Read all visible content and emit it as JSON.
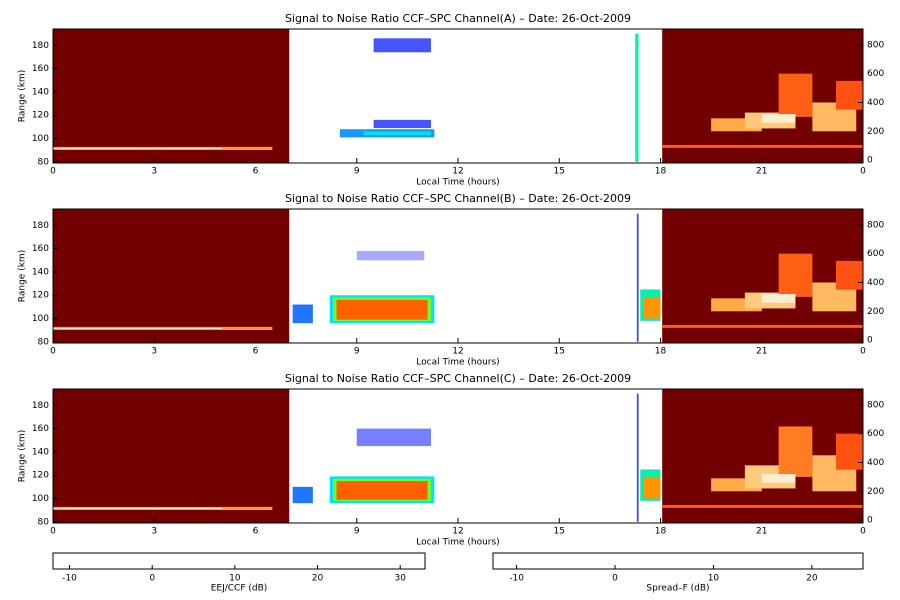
{
  "chart_data": [
    {
      "type": "heatmap",
      "title": "Signal to Noise Ratio CCF–SPC Channel(A) – Date: 26-Oct-2009",
      "xlabel": "Local Time (hours)",
      "ylabel": "Range (km)",
      "xlim": [
        0,
        24
      ],
      "xticks": [
        0,
        3,
        6,
        9,
        12,
        15,
        18,
        21,
        {
          "value": 24,
          "label": "0"
        }
      ],
      "ylim": [
        79,
        194
      ],
      "yticks": [
        80,
        100,
        120,
        140,
        160,
        180
      ],
      "y2lim": [
        -20,
        910
      ],
      "y2ticks": [
        0,
        200,
        400,
        600,
        800
      ],
      "cells": [
        {
          "x0": 9.5,
          "x1": 11.2,
          "y0": 174,
          "y1": 186,
          "value": -4
        },
        {
          "x0": 9.5,
          "x1": 11.2,
          "y0": 109,
          "y1": 116,
          "value": -4
        },
        {
          "x0": 8.5,
          "x1": 11.3,
          "y0": 101,
          "y1": 108,
          "value": 2
        },
        {
          "x0": 9.2,
          "x1": 11.2,
          "y0": 103,
          "y1": 106,
          "value": 7
        },
        {
          "x0": 17.25,
          "x1": 17.35,
          "y0": 80,
          "y1": 190,
          "value": 10
        }
      ],
      "night_cells": [
        {
          "x0": 0,
          "x1": 7,
          "y0": -20,
          "y1": 910,
          "value": -12
        },
        {
          "x0": 18.05,
          "x1": 24,
          "y0": -20,
          "y1": 910,
          "value": -12
        },
        {
          "x0": 0,
          "x1": 6.5,
          "y0": 70,
          "y1": 92,
          "value": 10
        },
        {
          "x0": 0,
          "x1": 5,
          "y0": 77,
          "y1": 84,
          "value": 22
        },
        {
          "x0": 18.05,
          "x1": 24,
          "y0": 85,
          "y1": 105,
          "value": 6
        },
        {
          "x0": 19.5,
          "x1": 21,
          "y0": 200,
          "y1": 290,
          "value": 12
        },
        {
          "x0": 20.5,
          "x1": 22,
          "y0": 220,
          "y1": 330,
          "value": 16
        },
        {
          "x0": 21.5,
          "x1": 22.5,
          "y0": 300,
          "y1": 600,
          "value": 6
        },
        {
          "x0": 22.5,
          "x1": 23.8,
          "y0": 200,
          "y1": 400,
          "value": 14
        },
        {
          "x0": 23.2,
          "x1": 24,
          "y0": 350,
          "y1": 550,
          "value": 5
        },
        {
          "x0": 21,
          "x1": 22,
          "y0": 260,
          "y1": 320,
          "value": 22
        }
      ]
    },
    {
      "type": "heatmap",
      "title": "Signal to Noise Ratio CCF–SPC Channel(B) – Date: 26-Oct-2009",
      "xlabel": "Local Time (hours)",
      "ylabel": "Range (km)",
      "xlim": [
        0,
        24
      ],
      "xticks": [
        0,
        3,
        6,
        9,
        12,
        15,
        18,
        21,
        {
          "value": 24,
          "label": "0"
        }
      ],
      "ylim": [
        79,
        194
      ],
      "yticks": [
        80,
        100,
        120,
        140,
        160,
        180
      ],
      "y2lim": [
        -20,
        910
      ],
      "y2ticks": [
        0,
        200,
        400,
        600,
        800
      ],
      "cells": [
        {
          "x0": 7.1,
          "x1": 7.7,
          "y0": 96,
          "y1": 112,
          "value": 0
        },
        {
          "x0": 8.2,
          "x1": 11.3,
          "y0": 96,
          "y1": 120,
          "value": 6
        },
        {
          "x0": 8.3,
          "x1": 11.2,
          "y0": 98,
          "y1": 118,
          "value": 18
        },
        {
          "x0": 8.4,
          "x1": 11.1,
          "y0": 99,
          "y1": 116,
          "value": 30
        },
        {
          "x0": 9,
          "x1": 11,
          "y0": 150,
          "y1": 158,
          "value": -8
        },
        {
          "x0": 17.3,
          "x1": 17.35,
          "y0": 80,
          "y1": 190,
          "value": -3
        },
        {
          "x0": 17.4,
          "x1": 18,
          "y0": 98,
          "y1": 125,
          "value": 10
        },
        {
          "x0": 17.5,
          "x1": 18,
          "y0": 100,
          "y1": 118,
          "value": 28
        }
      ],
      "night_cells": [
        {
          "x0": 0,
          "x1": 7,
          "y0": -20,
          "y1": 910,
          "value": -12
        },
        {
          "x0": 18.05,
          "x1": 24,
          "y0": -20,
          "y1": 910,
          "value": -12
        },
        {
          "x0": 0,
          "x1": 6.5,
          "y0": 70,
          "y1": 92,
          "value": 10
        },
        {
          "x0": 0,
          "x1": 5,
          "y0": 77,
          "y1": 84,
          "value": 22
        },
        {
          "x0": 18.05,
          "x1": 24,
          "y0": 85,
          "y1": 105,
          "value": 6
        },
        {
          "x0": 19.5,
          "x1": 21,
          "y0": 200,
          "y1": 290,
          "value": 12
        },
        {
          "x0": 20.5,
          "x1": 22,
          "y0": 220,
          "y1": 330,
          "value": 16
        },
        {
          "x0": 21.5,
          "x1": 22.5,
          "y0": 300,
          "y1": 600,
          "value": 6
        },
        {
          "x0": 22.5,
          "x1": 23.8,
          "y0": 200,
          "y1": 400,
          "value": 14
        },
        {
          "x0": 23.2,
          "x1": 24,
          "y0": 350,
          "y1": 550,
          "value": 5
        },
        {
          "x0": 21,
          "x1": 22,
          "y0": 260,
          "y1": 320,
          "value": 22
        }
      ]
    },
    {
      "type": "heatmap",
      "title": "Signal to Noise Ratio CCF–SPC Channel(C) – Date: 26-Oct-2009",
      "xlabel": "Local Time (hours)",
      "ylabel": "Range (km)",
      "xlim": [
        0,
        24
      ],
      "xticks": [
        0,
        3,
        6,
        9,
        12,
        15,
        18,
        21,
        {
          "value": 24,
          "label": "0"
        }
      ],
      "ylim": [
        79,
        194
      ],
      "yticks": [
        80,
        100,
        120,
        140,
        160,
        180
      ],
      "y2lim": [
        -20,
        910
      ],
      "y2ticks": [
        0,
        200,
        400,
        600,
        800
      ],
      "cells": [
        {
          "x0": 7.1,
          "x1": 7.7,
          "y0": 96,
          "y1": 110,
          "value": 0
        },
        {
          "x0": 8.2,
          "x1": 11.3,
          "y0": 96,
          "y1": 119,
          "value": 6
        },
        {
          "x0": 8.3,
          "x1": 11.2,
          "y0": 98,
          "y1": 117,
          "value": 18
        },
        {
          "x0": 8.4,
          "x1": 11.1,
          "y0": 99,
          "y1": 115,
          "value": 30
        },
        {
          "x0": 9,
          "x1": 11.2,
          "y0": 145,
          "y1": 160,
          "value": -6
        },
        {
          "x0": 17.3,
          "x1": 17.35,
          "y0": 80,
          "y1": 190,
          "value": -3
        },
        {
          "x0": 17.4,
          "x1": 18,
          "y0": 98,
          "y1": 125,
          "value": 10
        },
        {
          "x0": 17.5,
          "x1": 18,
          "y0": 100,
          "y1": 118,
          "value": 28
        }
      ],
      "night_cells": [
        {
          "x0": 0,
          "x1": 7,
          "y0": -20,
          "y1": 910,
          "value": -12
        },
        {
          "x0": 18.05,
          "x1": 24,
          "y0": -20,
          "y1": 910,
          "value": -12
        },
        {
          "x0": 0,
          "x1": 6.5,
          "y0": 70,
          "y1": 92,
          "value": 10
        },
        {
          "x0": 0,
          "x1": 5,
          "y0": 77,
          "y1": 84,
          "value": 22
        },
        {
          "x0": 18.05,
          "x1": 24,
          "y0": 85,
          "y1": 105,
          "value": 6
        },
        {
          "x0": 19.5,
          "x1": 21,
          "y0": 200,
          "y1": 290,
          "value": 12
        },
        {
          "x0": 20.5,
          "x1": 22,
          "y0": 220,
          "y1": 380,
          "value": 16
        },
        {
          "x0": 21.5,
          "x1": 22.5,
          "y0": 300,
          "y1": 650,
          "value": 8
        },
        {
          "x0": 22.5,
          "x1": 23.8,
          "y0": 200,
          "y1": 450,
          "value": 14
        },
        {
          "x0": 23.2,
          "x1": 24,
          "y0": 350,
          "y1": 600,
          "value": 5
        },
        {
          "x0": 21,
          "x1": 22,
          "y0": 260,
          "y1": 320,
          "value": 22
        }
      ]
    },
    {
      "type": "colorbar",
      "label": "EEJ/CCF (dB)",
      "clim": [
        -12,
        33
      ],
      "ticks": [
        -10,
        0,
        10,
        20,
        30
      ],
      "colors": [
        "#ffffff",
        "#3040ff",
        "#00e0ff",
        "#20ff40",
        "#ffff00",
        "#ff1000"
      ]
    },
    {
      "type": "colorbar",
      "label": "Spread–F (dB)",
      "clim": [
        -12.4,
        25.2
      ],
      "ticks": [
        -10,
        0,
        10,
        20
      ],
      "colors": [
        "#700000",
        "#a80000",
        "#ff3000",
        "#ff9a30",
        "#ffd890",
        "#ffffff"
      ]
    }
  ]
}
